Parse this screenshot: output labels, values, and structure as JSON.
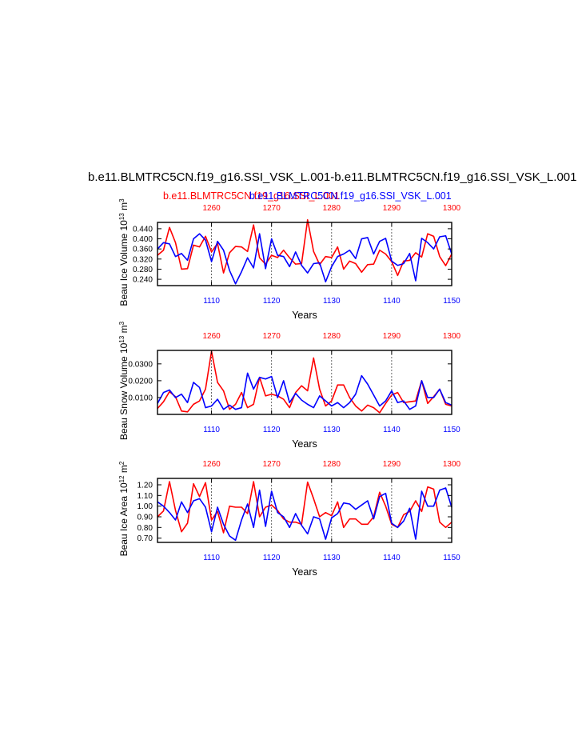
{
  "figure": {
    "title": "b.e11.BLMTRC5CN.f19_g16.SSI_VSK_L.001-b.e11.BLMTRC5CN.f19_g16.SSI_VSK_L.001",
    "subtitle_red": "b.e11.BLMTRC5CN.f19_g16.SSI_L.001",
    "subtitle_blue": "b.e11.BLMTRC5CN.f19_g16.SSI_VSK_L.001",
    "colors": {
      "red": "#ff0000",
      "blue": "#0000ff",
      "axis": "#000000"
    }
  },
  "chart_data": [
    {
      "type": "line",
      "ylabel": "Beau Ice Volume 10",
      "ylabel_exp": "13",
      "ylabel_unit": " m",
      "ylabel_unit_exp": "3",
      "xlabel": "Years",
      "xlim_bottom": [
        1101,
        1150
      ],
      "xlim_top": [
        1251,
        1300
      ],
      "ylim": [
        0.215,
        0.465
      ],
      "yticks": [
        0.24,
        0.28,
        0.32,
        0.36,
        0.4,
        0.44
      ],
      "ytick_labels": [
        "0.240",
        "0.280",
        "0.320",
        "0.360",
        "0.400",
        "0.440"
      ],
      "xticks_bottom": [
        1110,
        1120,
        1130,
        1140,
        1150
      ],
      "xticks_top": [
        1260,
        1270,
        1280,
        1290,
        1300
      ],
      "series": [
        {
          "name": "b.e11.BLMTRC5CN.f19_g16.SSI_L.001",
          "color": "#ff0000",
          "values": [
            0.335,
            0.355,
            0.445,
            0.385,
            0.28,
            0.282,
            0.375,
            0.368,
            0.41,
            0.348,
            0.382,
            0.265,
            0.345,
            0.37,
            0.368,
            0.35,
            0.455,
            0.325,
            0.3,
            0.335,
            0.326,
            0.355,
            0.325,
            0.3,
            0.302,
            0.475,
            0.35,
            0.298,
            0.33,
            0.326,
            0.368,
            0.28,
            0.312,
            0.302,
            0.268,
            0.298,
            0.3,
            0.355,
            0.34,
            0.31,
            0.255,
            0.312,
            0.315,
            0.345,
            0.328,
            0.42,
            0.41,
            0.33,
            0.294,
            0.34
          ]
        },
        {
          "name": "b.e11.BLMTRC5CN.f19_g16.SSI_VSK_L.001",
          "color": "#0000ff",
          "values": [
            0.36,
            0.385,
            0.38,
            0.33,
            0.342,
            0.315,
            0.4,
            0.42,
            0.395,
            0.31,
            0.39,
            0.355,
            0.275,
            0.222,
            0.27,
            0.325,
            0.285,
            0.42,
            0.282,
            0.4,
            0.335,
            0.33,
            0.29,
            0.348,
            0.295,
            0.265,
            0.302,
            0.305,
            0.23,
            0.29,
            0.33,
            0.34,
            0.355,
            0.322,
            0.4,
            0.405,
            0.34,
            0.39,
            0.402,
            0.312,
            0.295,
            0.302,
            0.342,
            0.234,
            0.402,
            0.385,
            0.36,
            0.408,
            0.412,
            0.34
          ]
        }
      ]
    },
    {
      "type": "line",
      "ylabel": "Beau Snow Volume 10",
      "ylabel_exp": "13",
      "ylabel_unit": " m",
      "ylabel_unit_exp": "3",
      "xlabel": "Years",
      "xlim_bottom": [
        1101,
        1150
      ],
      "xlim_top": [
        1251,
        1300
      ],
      "ylim": [
        0,
        0.038
      ],
      "yticks": [
        0.01,
        0.02,
        0.03
      ],
      "ytick_labels": [
        "0.0100",
        "0.0200",
        "0.0300"
      ],
      "xticks_bottom": [
        1110,
        1120,
        1130,
        1140,
        1150
      ],
      "xticks_top": [
        1260,
        1270,
        1280,
        1290,
        1300
      ],
      "series": [
        {
          "name": "b.e11.BLMTRC5CN.f19_g16.SSI_L.001",
          "color": "#ff0000",
          "values": [
            0.0035,
            0.0075,
            0.0135,
            0.0105,
            0.002,
            0.0015,
            0.006,
            0.008,
            0.015,
            0.0375,
            0.019,
            0.014,
            0.003,
            0.006,
            0.013,
            0.004,
            0.006,
            0.022,
            0.011,
            0.012,
            0.011,
            0.009,
            0.004,
            0.013,
            0.017,
            0.014,
            0.0335,
            0.015,
            0.005,
            0.008,
            0.0175,
            0.0175,
            0.01,
            0.005,
            0.002,
            0.0055,
            0.004,
            0.001,
            0.0065,
            0.0115,
            0.013,
            0.007,
            0.0075,
            0.008,
            0.02,
            0.0065,
            0.0105,
            0.015,
            0.006,
            0.005
          ]
        },
        {
          "name": "b.e11.BLMTRC5CN.f19_g16.SSI_VSK_L.001",
          "color": "#0000ff",
          "values": [
            0.0065,
            0.013,
            0.0145,
            0.01,
            0.012,
            0.007,
            0.019,
            0.016,
            0.004,
            0.005,
            0.009,
            0.003,
            0.0055,
            0.003,
            0.004,
            0.0245,
            0.015,
            0.022,
            0.021,
            0.0225,
            0.01,
            0.02,
            0.007,
            0.0125,
            0.0085,
            0.006,
            0.004,
            0.011,
            0.008,
            0.005,
            0.007,
            0.004,
            0.007,
            0.012,
            0.023,
            0.018,
            0.0115,
            0.005,
            0.008,
            0.014,
            0.007,
            0.008,
            0.003,
            0.005,
            0.02,
            0.01,
            0.01,
            0.015,
            0.007,
            0.0055
          ]
        }
      ]
    },
    {
      "type": "line",
      "ylabel": "Beau Ice Area 10",
      "ylabel_exp": "12",
      "ylabel_unit": " m",
      "ylabel_unit_exp": "2",
      "xlabel": "Years",
      "xlim_bottom": [
        1101,
        1150
      ],
      "xlim_top": [
        1251,
        1300
      ],
      "ylim": [
        0.66,
        1.26
      ],
      "yticks": [
        0.7,
        0.8,
        0.9,
        1.0,
        1.1,
        1.2
      ],
      "ytick_labels": [
        "0.70",
        "0.80",
        "0.90",
        "1.00",
        "1.10",
        "1.20"
      ],
      "xticks_bottom": [
        1110,
        1120,
        1130,
        1140,
        1150
      ],
      "xticks_top": [
        1260,
        1270,
        1280,
        1290,
        1300
      ],
      "series": [
        {
          "name": "b.e11.BLMTRC5CN.f19_g16.SSI_L.001",
          "color": "#ff0000",
          "values": [
            0.9,
            0.955,
            1.23,
            0.96,
            0.76,
            0.84,
            1.21,
            1.09,
            1.22,
            0.87,
            0.95,
            0.75,
            1.0,
            0.99,
            0.99,
            0.93,
            1.23,
            0.9,
            0.99,
            1.01,
            0.96,
            0.88,
            0.85,
            0.85,
            0.83,
            1.225,
            1.07,
            0.9,
            0.94,
            0.91,
            1.04,
            0.8,
            0.88,
            0.88,
            0.83,
            0.83,
            0.9,
            1.13,
            1.0,
            0.83,
            0.8,
            0.92,
            0.95,
            1.05,
            0.95,
            1.18,
            1.16,
            0.85,
            0.8,
            0.85
          ]
        },
        {
          "name": "b.e11.BLMTRC5CN.f19_g16.SSI_VSK_L.001",
          "color": "#0000ff",
          "values": [
            1.04,
            1.0,
            0.94,
            0.87,
            1.04,
            0.94,
            1.05,
            1.07,
            0.99,
            0.76,
            0.99,
            0.83,
            0.72,
            0.68,
            0.87,
            1.02,
            0.8,
            1.15,
            0.81,
            1.14,
            0.94,
            0.9,
            0.8,
            0.93,
            0.82,
            0.74,
            0.9,
            0.88,
            0.69,
            0.89,
            0.93,
            1.03,
            1.02,
            0.97,
            1.01,
            1.05,
            0.88,
            1.09,
            1.12,
            0.84,
            0.8,
            0.86,
            0.98,
            0.69,
            1.14,
            1.0,
            1.0,
            1.15,
            1.17,
            0.99
          ]
        }
      ]
    }
  ]
}
